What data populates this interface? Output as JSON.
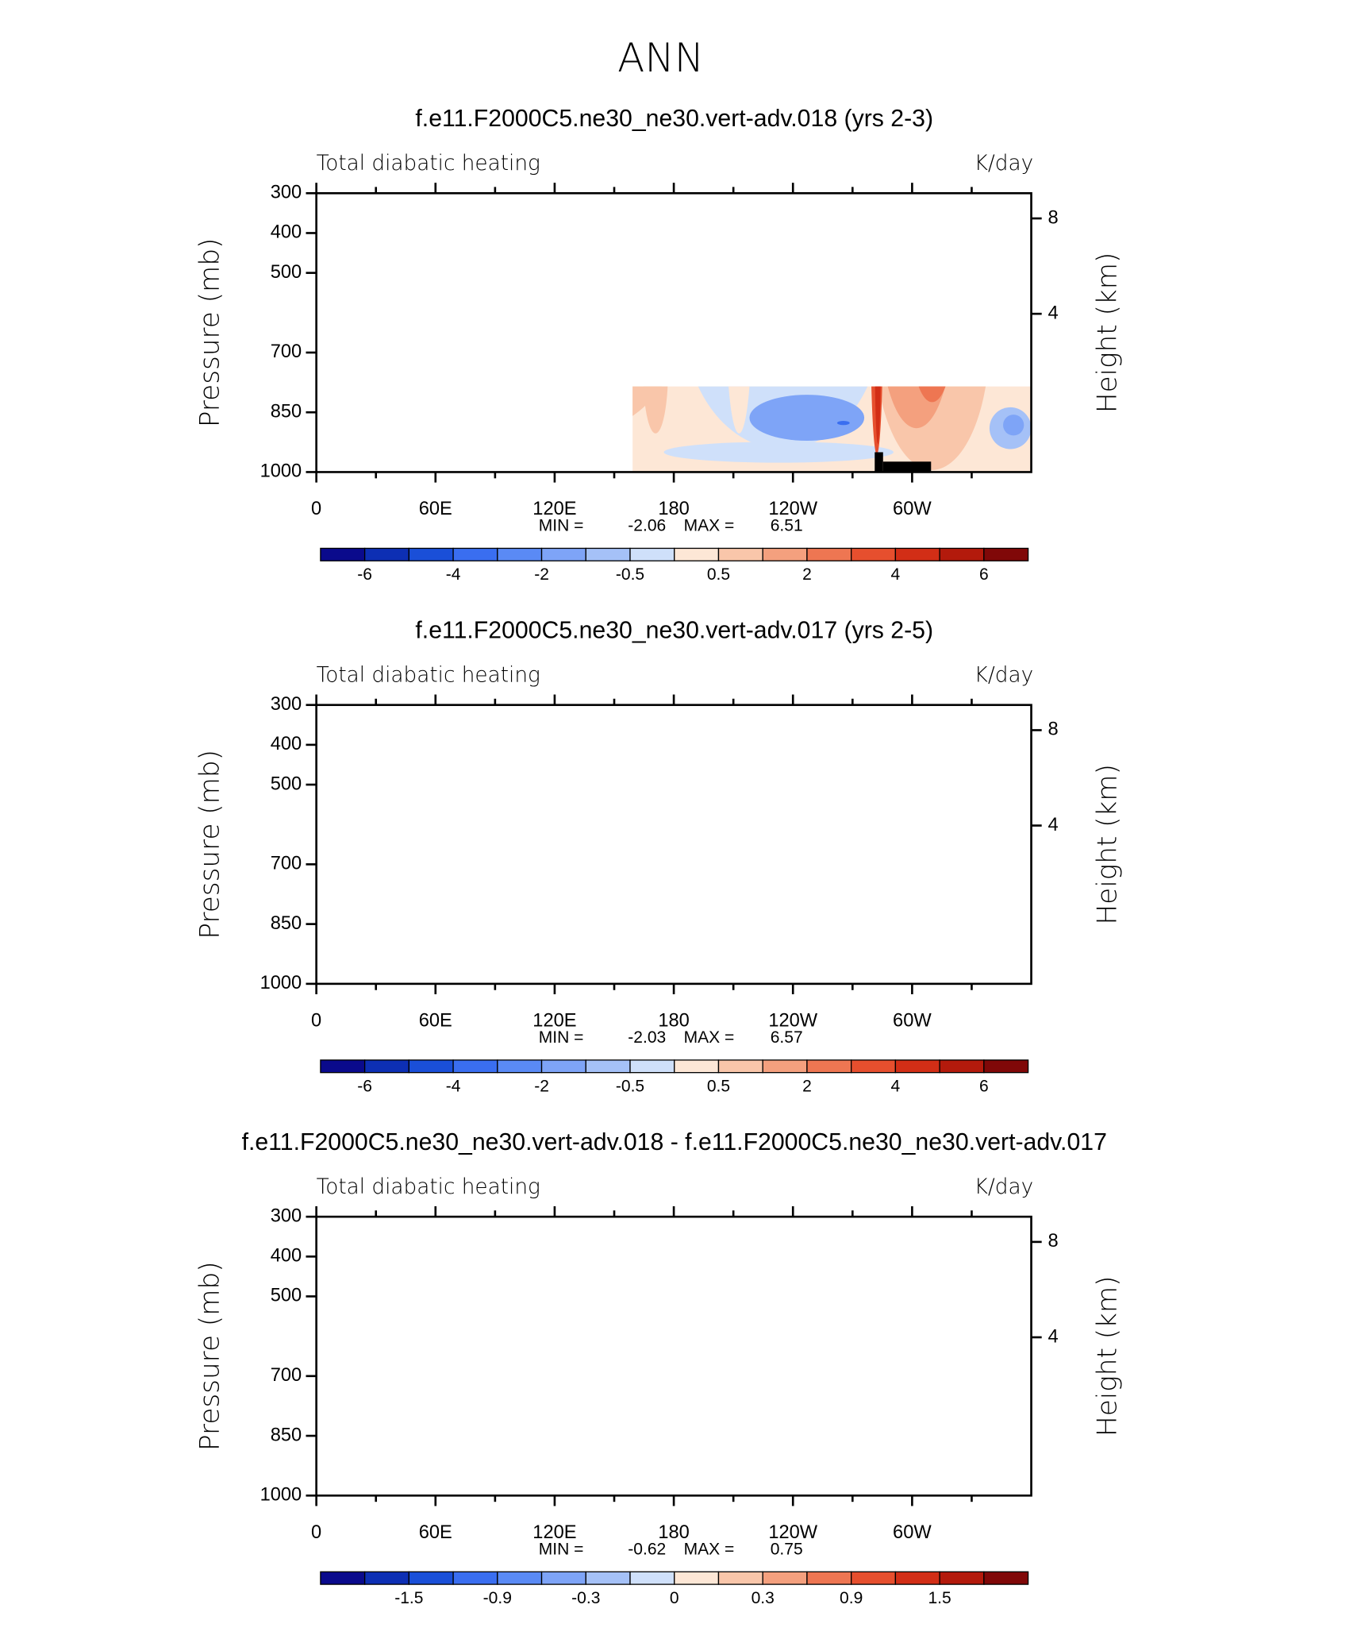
{
  "title": "ANN",
  "panels": [
    {
      "title": "f.e11.F2000C5.ne30_ne30.vert-adv.018 (yrs 2-3)",
      "left_string": "Total diabatic heating",
      "right_string": "K/day",
      "y_label": "Pressure (mb)",
      "y2_label": "Height (km)",
      "ylim": [
        1000,
        300
      ],
      "yticks": [
        300,
        400,
        500,
        700,
        850,
        1000
      ],
      "y2ticks": [
        8,
        4
      ],
      "xlim": [
        0,
        360
      ],
      "xticks": [
        0,
        {
          "value": 60,
          "label": "60E"
        },
        {
          "value": 120,
          "label": "120E"
        },
        180,
        {
          "value": 240,
          "label": "120W"
        },
        {
          "value": 300,
          "label": "60W"
        }
      ],
      "min_label": "MIN =",
      "min": -2.06,
      "max_label": "MAX =",
      "max": 6.51,
      "colorbar": {
        "labels": [
          -6,
          -4,
          -2,
          -0.5,
          0.5,
          2,
          4,
          6
        ],
        "colors": [
          "#0a0a8c",
          "#0d2fb4",
          "#1a4fd8",
          "#3a6ef0",
          "#5a8af5",
          "#7ea4f7",
          "#a5c1f7",
          "#cfe0fa",
          "#fde7d6",
          "#f9c6aa",
          "#f4a07e",
          "#ee7652",
          "#e64f2e",
          "#d22e16",
          "#b31a0c",
          "#800808"
        ]
      }
    },
    {
      "title": "f.e11.F2000C5.ne30_ne30.vert-adv.017 (yrs 2-5)",
      "left_string": "Total diabatic heating",
      "right_string": "K/day",
      "y_label": "Pressure (mb)",
      "y2_label": "Height (km)",
      "ylim": [
        1000,
        300
      ],
      "yticks": [
        300,
        400,
        500,
        700,
        850,
        1000
      ],
      "y2ticks": [
        8,
        4
      ],
      "xlim": [
        0,
        360
      ],
      "xticks": [
        0,
        {
          "value": 60,
          "label": "60E"
        },
        {
          "value": 120,
          "label": "120E"
        },
        180,
        {
          "value": 240,
          "label": "120W"
        },
        {
          "value": 300,
          "label": "60W"
        }
      ],
      "min_label": "MIN =",
      "min": -2.03,
      "max_label": "MAX =",
      "max": 6.57,
      "colorbar": {
        "labels": [
          -6,
          -4,
          -2,
          -0.5,
          0.5,
          2,
          4,
          6
        ],
        "colors": [
          "#0a0a8c",
          "#0d2fb4",
          "#1a4fd8",
          "#3a6ef0",
          "#5a8af5",
          "#7ea4f7",
          "#a5c1f7",
          "#cfe0fa",
          "#fde7d6",
          "#f9c6aa",
          "#f4a07e",
          "#ee7652",
          "#e64f2e",
          "#d22e16",
          "#b31a0c",
          "#800808"
        ]
      }
    },
    {
      "title": "f.e11.F2000C5.ne30_ne30.vert-adv.018 - f.e11.F2000C5.ne30_ne30.vert-adv.017",
      "left_string": "Total diabatic heating",
      "right_string": "K/day",
      "y_label": "Pressure (mb)",
      "y2_label": "Height (km)",
      "ylim": [
        1000,
        300
      ],
      "yticks": [
        300,
        400,
        500,
        700,
        850,
        1000
      ],
      "y2ticks": [
        8,
        4
      ],
      "xlim": [
        0,
        360
      ],
      "xticks": [
        0,
        {
          "value": 60,
          "label": "60E"
        },
        {
          "value": 120,
          "label": "120E"
        },
        180,
        {
          "value": 240,
          "label": "120W"
        },
        {
          "value": 300,
          "label": "60W"
        }
      ],
      "min_label": "MIN =",
      "min": -0.62,
      "max_label": "MAX =",
      "max": 0.75,
      "colorbar": {
        "labels": [
          -1.5,
          -0.9,
          -0.3,
          0,
          0.3,
          0.9,
          1.5
        ],
        "colors": [
          "#0a0a8c",
          "#0d2fb4",
          "#1a4fd8",
          "#3a6ef0",
          "#5a8af5",
          "#7ea4f7",
          "#a5c1f7",
          "#cfe0fa",
          "#fde7d6",
          "#f9c6aa",
          "#f4a07e",
          "#ee7652",
          "#e64f2e",
          "#d22e16",
          "#b31a0c",
          "#800808"
        ]
      }
    }
  ]
}
